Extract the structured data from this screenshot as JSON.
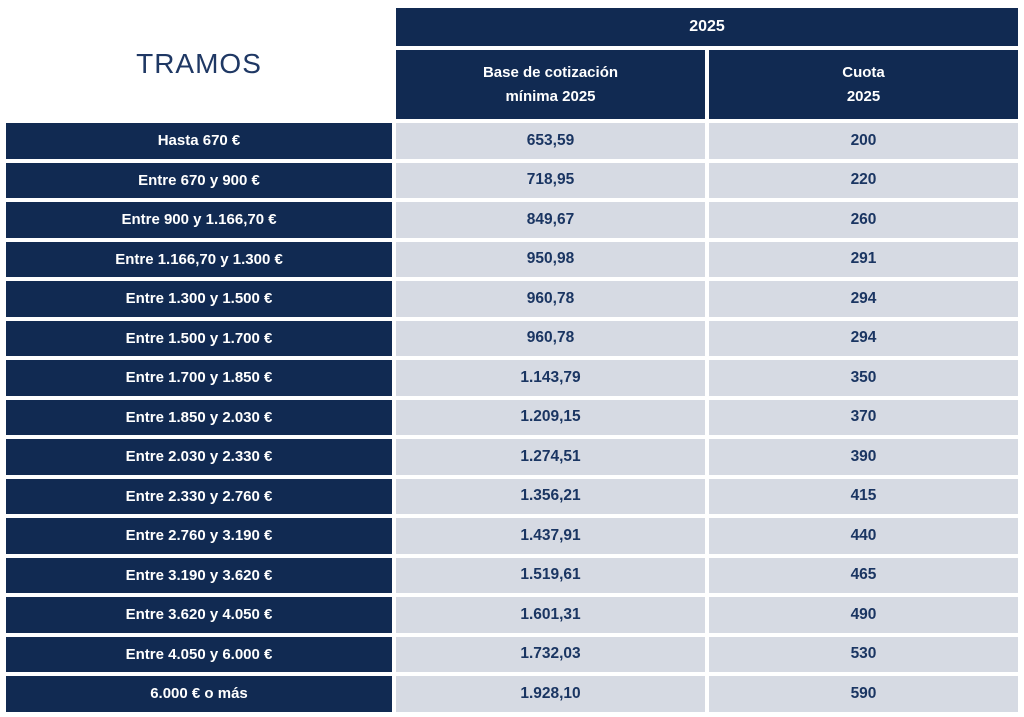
{
  "table": {
    "corner_title": "TRAMOS",
    "year_header": "2025",
    "base_column_header": "Base de cotización\nmínima 2025",
    "cuota_column_header": "Cuota\n2025",
    "rows": [
      {
        "tramo": "Hasta 670 €",
        "base": "653,59",
        "cuota": "200"
      },
      {
        "tramo": "Entre 670 y 900 €",
        "base": "718,95",
        "cuota": "220"
      },
      {
        "tramo": "Entre 900 y 1.166,70 €",
        "base": "849,67",
        "cuota": "260"
      },
      {
        "tramo": "Entre 1.166,70 y 1.300 €",
        "base": "950,98",
        "cuota": "291"
      },
      {
        "tramo": "Entre 1.300 y 1.500 €",
        "base": "960,78",
        "cuota": "294"
      },
      {
        "tramo": "Entre 1.500 y 1.700 €",
        "base": "960,78",
        "cuota": "294"
      },
      {
        "tramo": "Entre 1.700 y 1.850 €",
        "base": "1.143,79",
        "cuota": "350"
      },
      {
        "tramo": "Entre 1.850 y 2.030 €",
        "base": "1.209,15",
        "cuota": "370"
      },
      {
        "tramo": "Entre 2.030 y 2.330 €",
        "base": "1.274,51",
        "cuota": "390"
      },
      {
        "tramo": "Entre 2.330 y 2.760 €",
        "base": "1.356,21",
        "cuota": "415"
      },
      {
        "tramo": "Entre 2.760 y 3.190 €",
        "base": "1.437,91",
        "cuota": "440"
      },
      {
        "tramo": "Entre 3.190 y 3.620 €",
        "base": "1.519,61",
        "cuota": "465"
      },
      {
        "tramo": "Entre 3.620 y 4.050 €",
        "base": "1.601,31",
        "cuota": "490"
      },
      {
        "tramo": "Entre 4.050 y 6.000 €",
        "base": "1.732,03",
        "cuota": "530"
      },
      {
        "tramo": "6.000 € o más",
        "base": "1.928,10",
        "cuota": "590"
      }
    ],
    "colors": {
      "navy": "#112a52",
      "light_cell": "#d6dae3",
      "value_text": "#1a3562",
      "header_text": "#ffffff",
      "title_text": "#1f3864"
    }
  }
}
